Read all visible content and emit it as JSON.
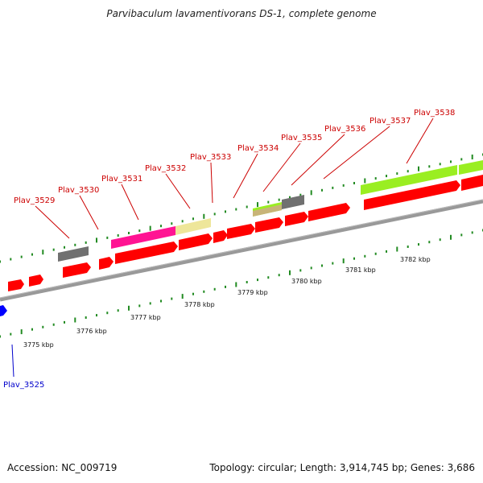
{
  "title": "Parvibaculum lavamentivorans DS-1, complete genome",
  "footer": {
    "accession": "Accession: NC_009719",
    "summary": "Topology: circular; Length: 3,914,745 bp; Genes: 3,686"
  },
  "colors": {
    "backbone": "#888888",
    "forward_gene": "#ff0000",
    "reverse_gene": "#0000ff",
    "tick": "#228b22",
    "forward_label": "#cc0000",
    "reverse_label": "#0000cc"
  },
  "kbp_scale": [
    {
      "label": "3775 kbp"
    },
    {
      "label": "3776 kbp"
    },
    {
      "label": "3777 kbp"
    },
    {
      "label": "3778 kbp"
    },
    {
      "label": "3779 kbp"
    },
    {
      "label": "3780 kbp"
    },
    {
      "label": "3781 kbp"
    },
    {
      "label": "3782 kbp"
    }
  ],
  "gene_labels": [
    {
      "name": "Plav_3525",
      "strand": "reverse"
    },
    {
      "name": "Plav_3529",
      "strand": "forward"
    },
    {
      "name": "Plav_3530",
      "strand": "forward"
    },
    {
      "name": "Plav_3531",
      "strand": "forward"
    },
    {
      "name": "Plav_3532",
      "strand": "forward"
    },
    {
      "name": "Plav_3533",
      "strand": "forward"
    },
    {
      "name": "Plav_3534",
      "strand": "forward"
    },
    {
      "name": "Plav_3535",
      "strand": "forward"
    },
    {
      "name": "Plav_3536",
      "strand": "forward"
    },
    {
      "name": "Plav_3537",
      "strand": "forward"
    },
    {
      "name": "Plav_3538",
      "strand": "forward"
    }
  ],
  "feature_tracks": [
    {
      "name": "functional-category-gray",
      "color": "#707070"
    },
    {
      "name": "functional-category-magenta",
      "color": "#ff1493"
    },
    {
      "name": "functional-category-khaki",
      "color": "#eee69a"
    },
    {
      "name": "functional-category-lime",
      "color": "#9aee22"
    },
    {
      "name": "functional-category-tan",
      "color": "#c8b478"
    }
  ]
}
